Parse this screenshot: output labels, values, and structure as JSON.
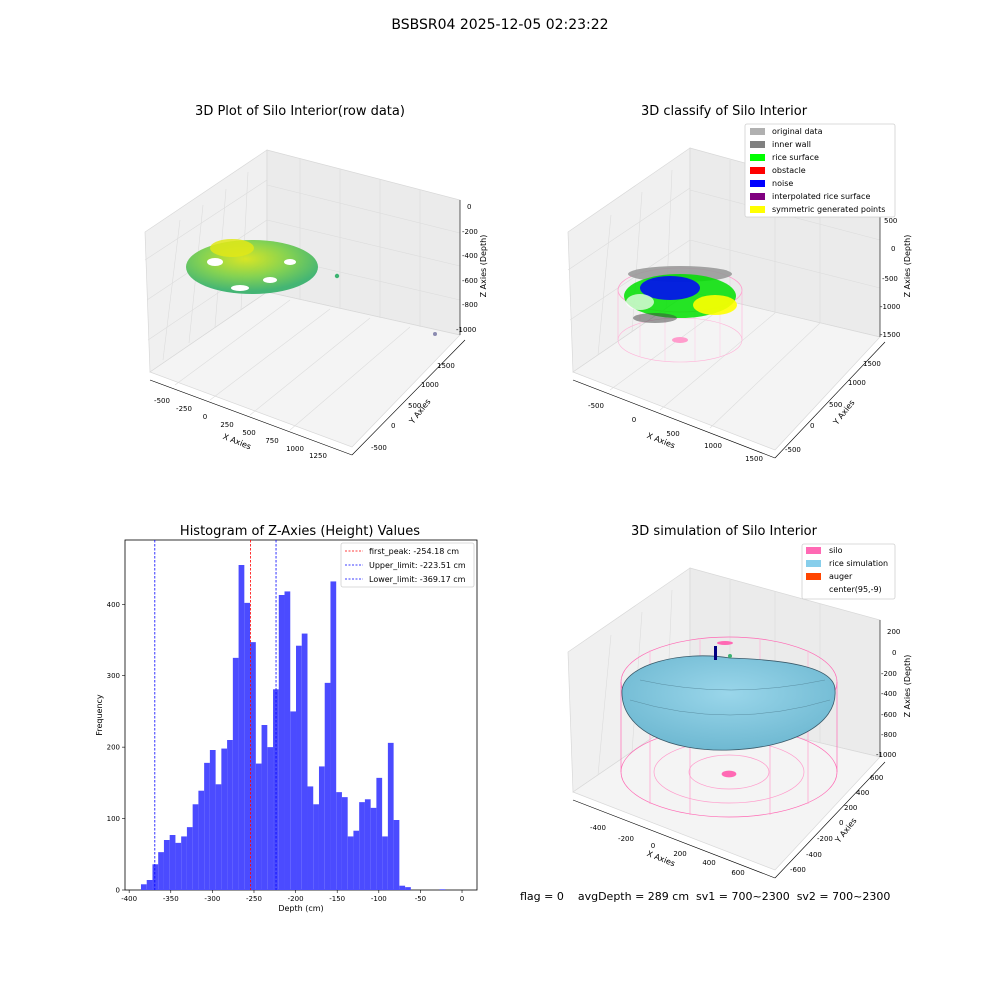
{
  "suptitle": "BSBSR04 2025-12-05 02:23:22",
  "footer": "flag = 0    avgDepth = 289 cm  sv1 = 700~2300  sv2 = 700~2300",
  "panels": {
    "raw3d": {
      "title": "3D Plot of Silo Interior(row data)",
      "x_label": "X Axies",
      "y_label": "Y Axies",
      "z_label": "Z Axies (Depth)",
      "x_ticks": [
        "-500",
        "-250",
        "0",
        "250",
        "500",
        "750",
        "1000",
        "1250"
      ],
      "y_ticks": [
        "-500",
        "0",
        "500",
        "1000",
        "1500"
      ],
      "z_ticks": [
        "0",
        "-200",
        "-400",
        "-600",
        "-800",
        "-1000"
      ]
    },
    "classify3d": {
      "title": "3D classify of Silo Interior",
      "x_label": "X Axies",
      "y_label": "Y Axies",
      "z_label": "Z Axies (Depth)",
      "x_ticks": [
        "-500",
        "0",
        "500",
        "1000",
        "1500"
      ],
      "y_ticks": [
        "-500",
        "0",
        "500",
        "1000",
        "1500"
      ],
      "z_ticks": [
        "500",
        "0",
        "-500",
        "-1000",
        "-1500"
      ],
      "legend": [
        {
          "label": "original data",
          "color": "#b0b0b0"
        },
        {
          "label": "inner wall",
          "color": "#808080"
        },
        {
          "label": "rice surface",
          "color": "#00ff00"
        },
        {
          "label": "obstacle",
          "color": "#ff0000"
        },
        {
          "label": "noise",
          "color": "#0000ff"
        },
        {
          "label": "interpolated rice surface",
          "color": "#800080"
        },
        {
          "label": "symmetric generated points",
          "color": "#ffff00"
        }
      ]
    },
    "simulation3d": {
      "title": "3D simulation of Silo Interior",
      "x_label": "X Axies",
      "y_label": "Y Axies",
      "z_label": "Z Axies (Depth)",
      "x_ticks": [
        "-400",
        "-200",
        "0",
        "200",
        "400",
        "600"
      ],
      "y_ticks": [
        "-600",
        "-400",
        "-200",
        "0",
        "200",
        "400",
        "600"
      ],
      "z_ticks": [
        "200",
        "0",
        "-200",
        "-400",
        "-600",
        "-800",
        "-1000"
      ],
      "legend": [
        {
          "label": "silo",
          "color": "#ff69b4"
        },
        {
          "label": "rice simulation",
          "color": "#87ceeb"
        },
        {
          "label": "auger",
          "color": "#ff4500"
        },
        {
          "label": "center(95,-9)",
          "color": "#ffffff"
        }
      ]
    }
  },
  "chart_data": {
    "type": "bar",
    "title": "Histogram of Z-Axies (Height) Values",
    "xlabel": "Depth (cm)",
    "ylabel": "Frequency",
    "xlim": [
      -405,
      18
    ],
    "ylim": [
      0,
      490
    ],
    "x_ticks": [
      -400,
      -350,
      -300,
      -250,
      -200,
      -150,
      -100,
      -50,
      0
    ],
    "y_ticks": [
      0,
      100,
      200,
      300,
      400
    ],
    "bar_color": "#4b4bff",
    "bin_width": 6.9,
    "bin_starts": [
      -385.8,
      -378.9,
      -372.0,
      -365.1,
      -358.2,
      -351.3,
      -344.4,
      -337.5,
      -330.6,
      -323.7,
      -316.8,
      -309.9,
      -303.0,
      -296.1,
      -289.2,
      -282.3,
      -275.4,
      -268.5,
      -261.6,
      -254.7,
      -247.8,
      -240.9,
      -234.0,
      -227.1,
      -220.2,
      -213.3,
      -206.4,
      -199.5,
      -192.6,
      -185.7,
      -178.8,
      -171.9,
      -165.0,
      -158.1,
      -151.2,
      -144.3,
      -137.4,
      -130.5,
      -123.6,
      -116.7,
      -109.8,
      -102.9,
      -96.0,
      -89.1,
      -82.2,
      -75.3,
      -68.4,
      -61.5,
      -54.6,
      -47.7,
      -40.8,
      -33.9,
      -27.0,
      -20.1,
      -13.2,
      -6.3
    ],
    "values": [
      8,
      14,
      36,
      53,
      70,
      77,
      66,
      75,
      88,
      120,
      139,
      178,
      196,
      148,
      198,
      210,
      325,
      455,
      402,
      347,
      177,
      231,
      200,
      281,
      413,
      418,
      250,
      342,
      359,
      145,
      120,
      173,
      290,
      432,
      137,
      130,
      75,
      83,
      123,
      127,
      115,
      157,
      75,
      206,
      98,
      6,
      4,
      0,
      0,
      0,
      0,
      0,
      1,
      0,
      0,
      0
    ],
    "vlines": [
      {
        "label": "first_peak: -254.18 cm",
        "x": -254.18,
        "color": "#ff0000"
      },
      {
        "label": "Upper_limit: -223.51 cm",
        "x": -223.51,
        "color": "#0000ff"
      },
      {
        "label": "Lower_limit: -369.17 cm",
        "x": -369.17,
        "color": "#0000ff"
      }
    ]
  }
}
